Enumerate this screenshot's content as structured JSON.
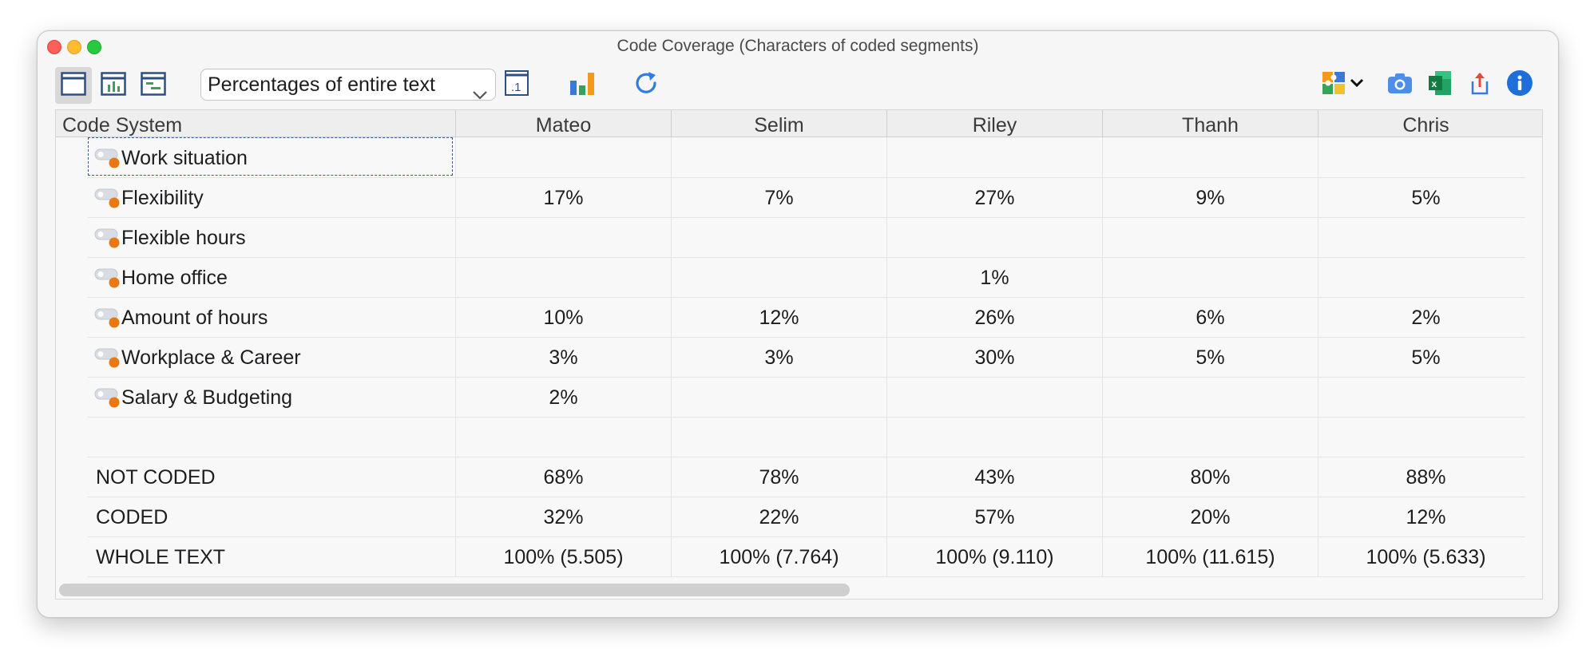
{
  "window": {
    "title": "Code Coverage (Characters of coded segments)"
  },
  "toolbar": {
    "display_mode": "Percentages of entire text"
  },
  "table": {
    "first_header": "Code System",
    "columns": [
      "Mateo",
      "Selim",
      "Riley",
      "Thanh",
      "Chris"
    ],
    "code_rows": [
      {
        "label": "Work situation",
        "values": [
          "",
          "",
          "",
          "",
          ""
        ]
      },
      {
        "label": "Flexibility",
        "values": [
          "17%",
          "7%",
          "27%",
          "9%",
          "5%"
        ]
      },
      {
        "label": "Flexible hours",
        "values": [
          "",
          "",
          "",
          "",
          ""
        ]
      },
      {
        "label": "Home office",
        "values": [
          "",
          "",
          "1%",
          "",
          ""
        ]
      },
      {
        "label": "Amount of hours",
        "values": [
          "10%",
          "12%",
          "26%",
          "6%",
          "2%"
        ]
      },
      {
        "label": "Workplace & Career",
        "values": [
          "3%",
          "3%",
          "30%",
          "5%",
          "5%"
        ]
      },
      {
        "label": "Salary & Budgeting",
        "values": [
          "2%",
          "",
          "",
          "",
          ""
        ]
      }
    ],
    "summary_rows": [
      {
        "label": "NOT CODED",
        "values": [
          "68%",
          "78%",
          "43%",
          "80%",
          "88%"
        ]
      },
      {
        "label": "CODED",
        "values": [
          "32%",
          "22%",
          "57%",
          "20%",
          "12%"
        ]
      },
      {
        "label": "WHOLE TEXT",
        "values": [
          "100% (5.505)",
          "100% (7.764)",
          "100% (9.110)",
          "100% (11.615)",
          "100% (5.633)"
        ]
      }
    ]
  },
  "colors": {
    "code_dot": "#e8780f",
    "accent": "#2f7de1"
  }
}
